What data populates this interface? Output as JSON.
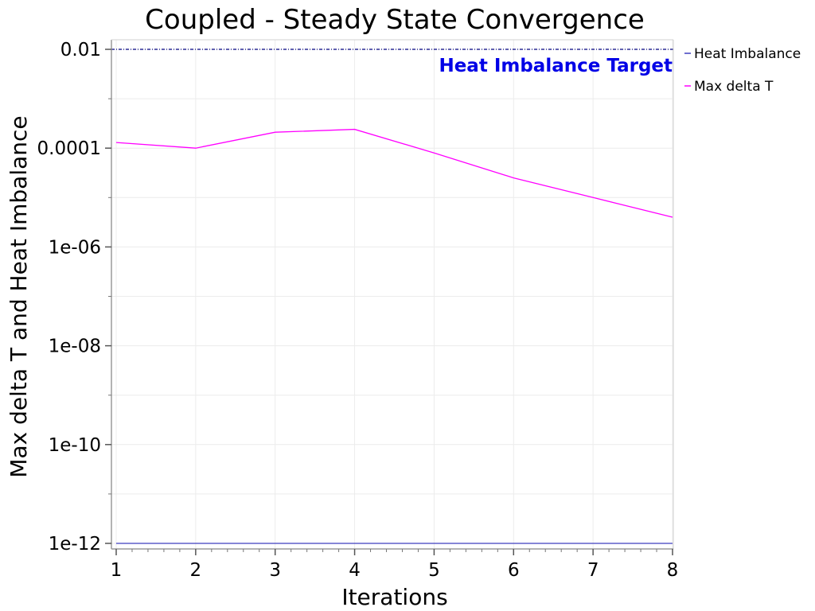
{
  "chart_data": {
    "type": "line",
    "title": "Coupled - Steady State Convergence",
    "xlabel": "Iterations",
    "ylabel": "Max delta T and Heat Imbalance",
    "x": [
      1,
      2,
      3,
      4,
      5,
      6,
      7,
      8
    ],
    "xlim": [
      1,
      8
    ],
    "ylim": [
      1e-12,
      0.01
    ],
    "yscale": "log",
    "grid": true,
    "x_tick_labels": [
      "1",
      "2",
      "3",
      "4",
      "5",
      "6",
      "7",
      "8"
    ],
    "y_tick_labels": [
      "0.01",
      "0.0001",
      "1e-06",
      "1e-08",
      "1e-10",
      "1e-12"
    ],
    "y_tick_values": [
      0.01,
      0.0001,
      1e-06,
      1e-08,
      1e-10,
      1e-12
    ],
    "legend_position": "right",
    "series": [
      {
        "name": "Heat Imbalance",
        "color": "#3f3fbf",
        "values": [
          1e-12,
          1e-12,
          1e-12,
          1e-12,
          1e-12,
          1e-12,
          1e-12,
          1e-12
        ]
      },
      {
        "name": "Max delta T",
        "color": "#ff00ff",
        "values": [
          0.00013,
          0.0001,
          0.00021,
          0.00024,
          8e-05,
          2.5e-05,
          1e-05,
          4e-06
        ]
      }
    ],
    "annotations": [
      {
        "text": "Heat Imbalance Target",
        "value": 0.01,
        "color": "#0000e6",
        "line_color": "#000080"
      }
    ]
  }
}
